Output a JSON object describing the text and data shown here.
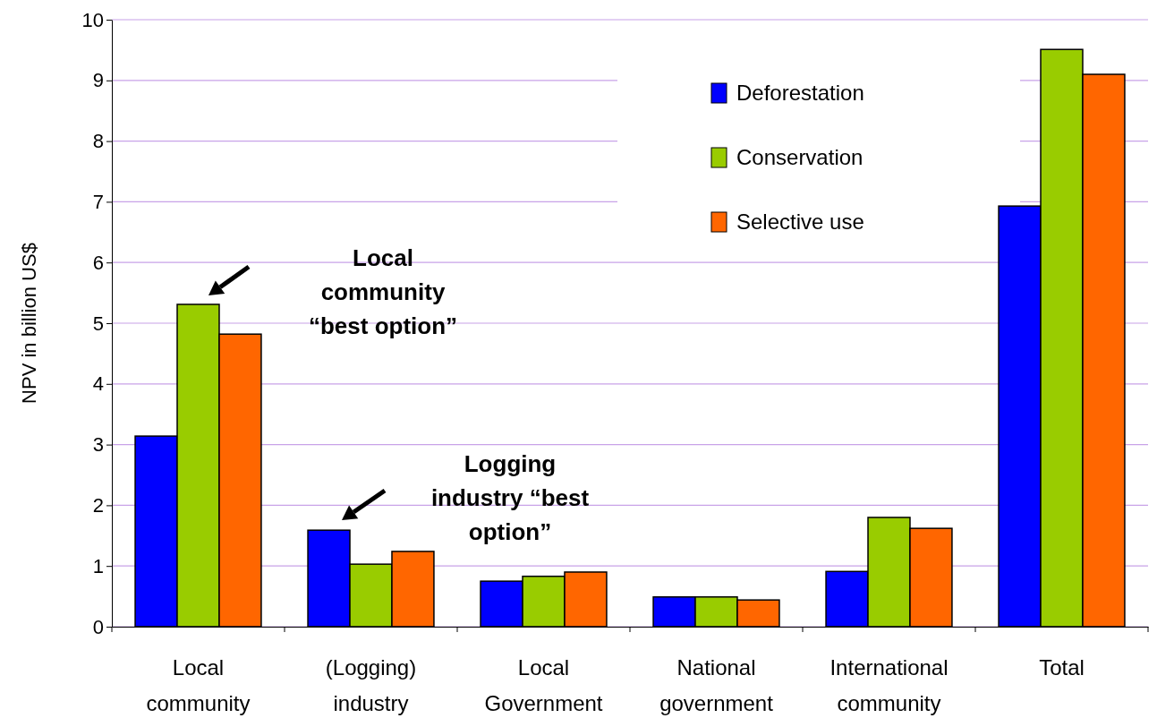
{
  "chart_data": {
    "type": "bar",
    "ylabel": "NPV in billion US$",
    "categories": [
      "Local community",
      "(Logging) industry",
      "Local Government",
      "National government",
      "International community",
      "Total"
    ],
    "series": [
      {
        "name": "Deforestation",
        "color": "#0000ff",
        "values": [
          3.14,
          1.59,
          0.75,
          0.49,
          0.91,
          6.93
        ]
      },
      {
        "name": "Conservation",
        "color": "#99cc00",
        "values": [
          5.31,
          1.03,
          0.83,
          0.49,
          1.8,
          9.51
        ]
      },
      {
        "name": "Selective use",
        "color": "#ff6600",
        "values": [
          4.82,
          1.24,
          0.9,
          0.44,
          1.62,
          9.1
        ]
      }
    ],
    "ylim": [
      0,
      10
    ],
    "yticks": [
      0,
      1,
      2,
      3,
      4,
      5,
      6,
      7,
      8,
      9,
      10
    ],
    "grid": "y",
    "legend": "top right",
    "annotations": [
      "Local\ncommunity\n“best option”",
      "Logging\nindustry “best\noption”"
    ]
  }
}
